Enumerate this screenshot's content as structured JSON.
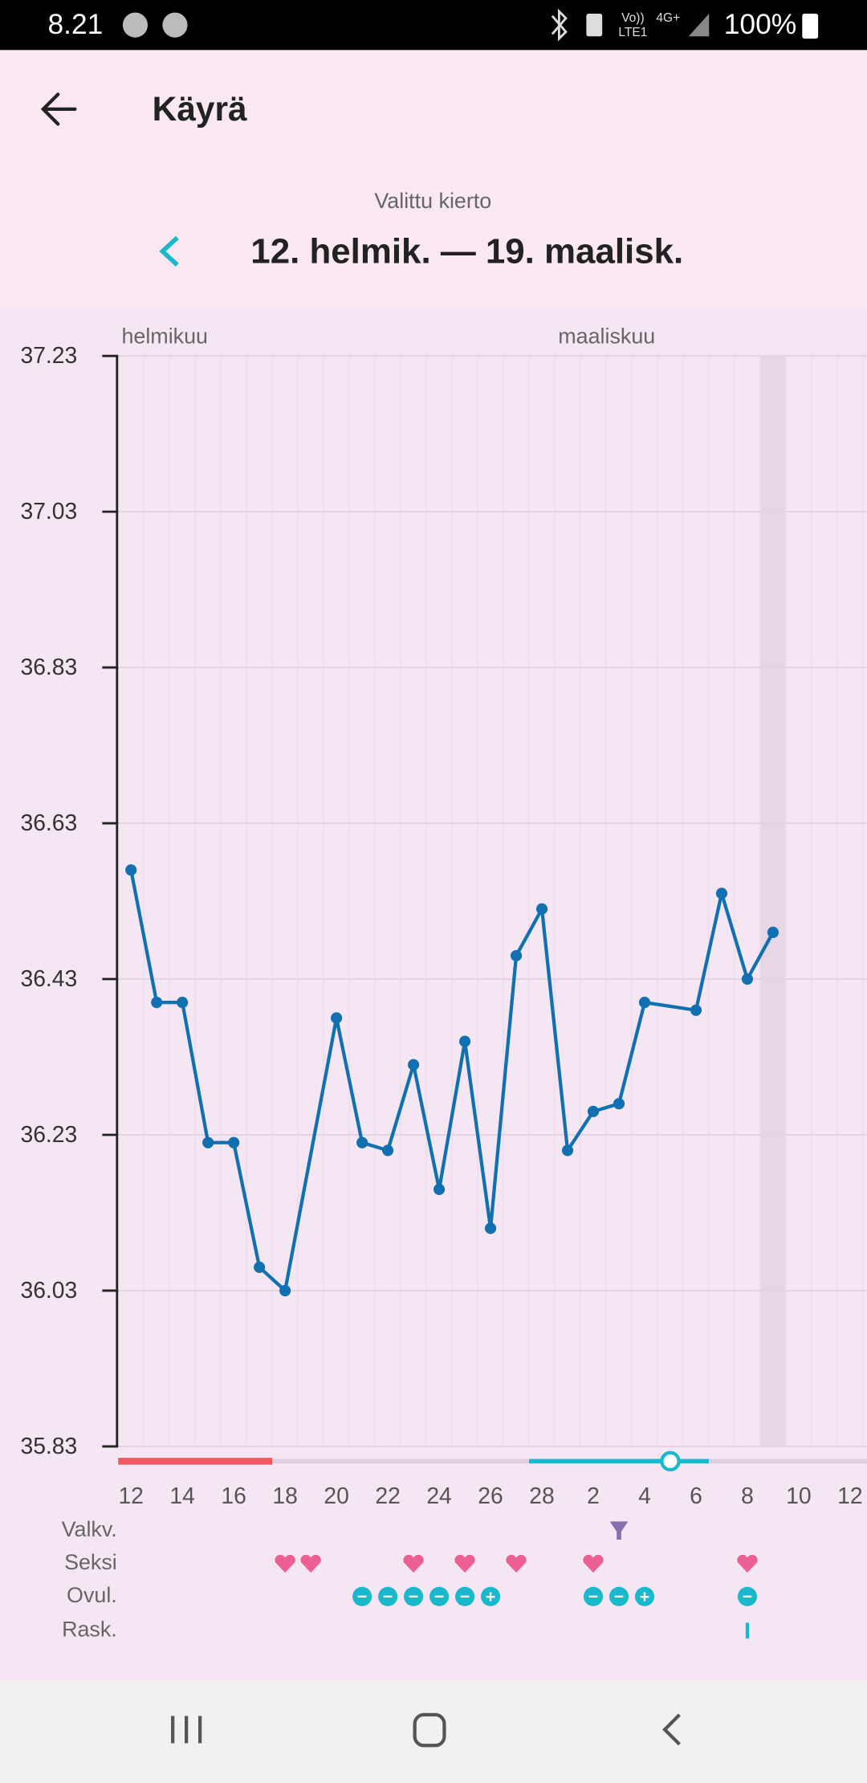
{
  "status_bar": {
    "time": "8.21",
    "volte": "Vo))",
    "lte": "LTE1",
    "network": "4G+",
    "battery": "100%"
  },
  "header": {
    "title": "Käyrä"
  },
  "cycle": {
    "caption": "Valittu kierto",
    "range": "12. helmik. — 19. maalisk."
  },
  "chart_data": {
    "type": "line",
    "categories": [
      "12",
      null,
      "14",
      null,
      "16",
      null,
      "18",
      null,
      "20",
      null,
      "22",
      null,
      "24",
      null,
      "26",
      null,
      "28",
      null,
      "2",
      null,
      "4",
      null,
      "6",
      null,
      "8",
      null,
      "10",
      null,
      "12"
    ],
    "values": [
      36.57,
      36.4,
      36.4,
      36.22,
      36.22,
      36.06,
      36.03,
      null,
      36.38,
      36.22,
      36.21,
      36.32,
      36.16,
      36.35,
      36.11,
      36.46,
      36.52,
      36.21,
      36.26,
      36.27,
      36.4,
      null,
      36.39,
      36.54,
      36.43,
      36.49,
      null,
      null,
      null
    ],
    "color": "#1070b0",
    "ylim": [
      35.83,
      37.23
    ],
    "yticks": [
      35.83,
      36.03,
      36.23,
      36.43,
      36.63,
      36.83,
      37.03,
      37.23
    ],
    "grid": true,
    "months": [
      {
        "label": "helmikuu",
        "start": 0
      },
      {
        "label": "maaliskuu",
        "start": 17
      }
    ],
    "highlight": 25,
    "period": [
      0,
      6
    ],
    "fertile": [
      16,
      23
    ],
    "ovulation": 21
  },
  "event_rows": [
    {
      "label": "Valkv.",
      "kind": "test",
      "items": [
        {
          "day": 19
        }
      ]
    },
    {
      "label": "Seksi",
      "kind": "heart",
      "items": [
        {
          "day": 6
        },
        {
          "day": 7
        },
        {
          "day": 11
        },
        {
          "day": 13
        },
        {
          "day": 15
        },
        {
          "day": 18
        },
        {
          "day": 24
        }
      ]
    },
    {
      "label": "Ovul.",
      "kind": "symbol",
      "items": [
        {
          "day": 9,
          "symbol": "−"
        },
        {
          "day": 10,
          "symbol": "−"
        },
        {
          "day": 11,
          "symbol": "−"
        },
        {
          "day": 12,
          "symbol": "−"
        },
        {
          "day": 13,
          "symbol": "−"
        },
        {
          "day": 14,
          "symbol": "+"
        },
        {
          "day": 18,
          "symbol": "−"
        },
        {
          "day": 19,
          "symbol": "−"
        },
        {
          "day": 20,
          "symbol": "+"
        },
        {
          "day": 24,
          "symbol": "−"
        }
      ]
    },
    {
      "label": "Rask.",
      "kind": "bar",
      "items": [
        {
          "day": 24
        }
      ]
    }
  ]
}
